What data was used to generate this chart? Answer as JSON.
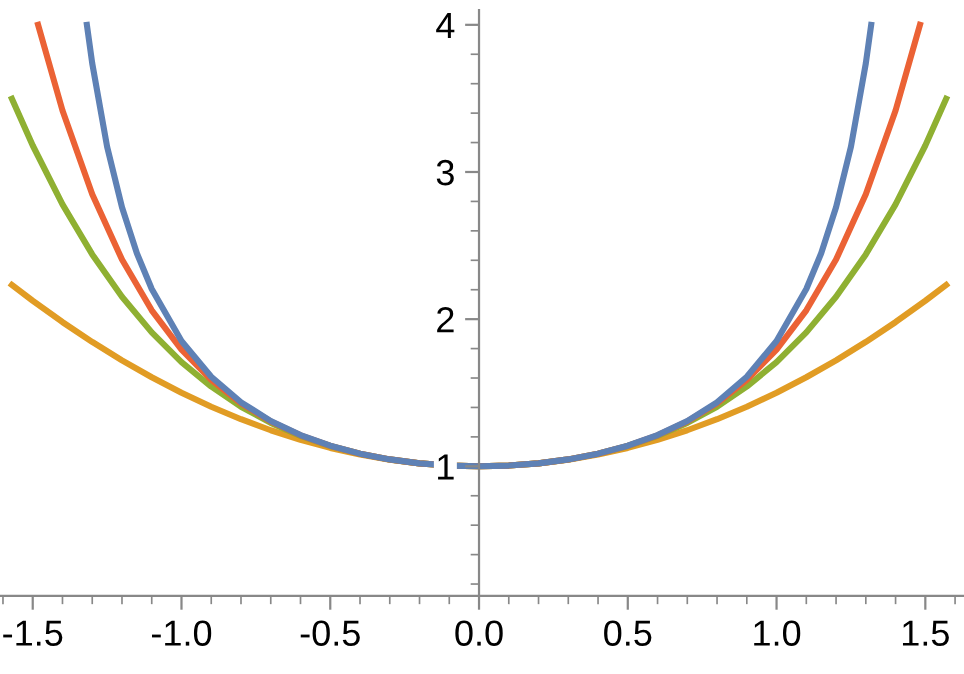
{
  "chart_data": {
    "type": "line",
    "xlim": [
      -1.61,
      1.63
    ],
    "ylim": [
      0.12,
      4.1
    ],
    "xticks": [
      {
        "value": -1.5,
        "label": "-1.5"
      },
      {
        "value": -1.0,
        "label": "-1.0"
      },
      {
        "value": -0.5,
        "label": "-0.5"
      },
      {
        "value": 0,
        "label": "0.0"
      },
      {
        "value": 0.5,
        "label": "0.5"
      },
      {
        "value": 1.0,
        "label": "1.0"
      },
      {
        "value": 1.5,
        "label": "1.5"
      }
    ],
    "yticks": [
      1,
      2,
      3,
      4
    ],
    "grid": false,
    "marker": "none",
    "line_style": "solid",
    "series": [
      {
        "color": "#e19c24",
        "x": [
          -1.57,
          -1.5,
          -1.4,
          -1.3,
          -1.2,
          -1.1,
          -1.0,
          -0.9,
          -0.8,
          -0.7,
          -0.6,
          -0.5,
          -0.4,
          -0.3,
          -0.2,
          -0.1,
          0,
          0.1,
          0.2,
          0.3,
          0.4,
          0.5,
          0.6,
          0.7,
          0.8,
          0.9,
          1.0,
          1.1,
          1.2,
          1.3,
          1.4,
          1.5,
          1.57
        ],
        "values": [
          2.232,
          2.125,
          1.98,
          1.845,
          1.72,
          1.605,
          1.5,
          1.405,
          1.32,
          1.245,
          1.18,
          1.125,
          1.08,
          1.045,
          1.02,
          1.005,
          1,
          1.005,
          1.02,
          1.045,
          1.08,
          1.125,
          1.18,
          1.245,
          1.32,
          1.405,
          1.5,
          1.605,
          1.72,
          1.845,
          1.98,
          2.125,
          2.232
        ]
      },
      {
        "color": "#8fb032",
        "x": [
          -1.57,
          -1.5,
          -1.4,
          -1.3,
          -1.2,
          -1.1,
          -1.0,
          -0.9,
          -0.8,
          -0.7,
          -0.6,
          -0.5,
          -0.4,
          -0.3,
          -0.2,
          -0.1,
          0,
          0.1,
          0.2,
          0.3,
          0.4,
          0.5,
          0.6,
          0.7,
          0.8,
          0.9,
          1.0,
          1.1,
          1.2,
          1.3,
          1.4,
          1.5,
          1.57
        ],
        "values": [
          3.498,
          3.18,
          2.78,
          2.44,
          2.152,
          1.91,
          1.708,
          1.542,
          1.405,
          1.295,
          1.207,
          1.138,
          1.085,
          1.047,
          1.02,
          1.005,
          1,
          1.005,
          1.02,
          1.047,
          1.085,
          1.138,
          1.207,
          1.295,
          1.405,
          1.542,
          1.708,
          1.91,
          2.152,
          2.44,
          2.78,
          3.18,
          3.498
        ]
      },
      {
        "color": "#eb6235",
        "x": [
          -1.482,
          -1.4,
          -1.3,
          -1.2,
          -1.1,
          -1.0,
          -0.9,
          -0.8,
          -0.7,
          -0.6,
          -0.5,
          -0.4,
          -0.3,
          -0.2,
          -0.1,
          0,
          0.1,
          0.2,
          0.3,
          0.4,
          0.5,
          0.6,
          0.7,
          0.8,
          0.9,
          1.0,
          1.1,
          1.2,
          1.3,
          1.4,
          1.482
        ],
        "values": [
          4.0,
          3.418,
          2.849,
          2.405,
          2.06,
          1.793,
          1.587,
          1.427,
          1.305,
          1.211,
          1.139,
          1.085,
          1.047,
          1.02,
          1.005,
          1,
          1.005,
          1.02,
          1.047,
          1.085,
          1.139,
          1.211,
          1.305,
          1.427,
          1.587,
          1.793,
          2.06,
          2.405,
          2.849,
          3.418,
          4.0
        ]
      },
      {
        "color": "#5e81b5",
        "x": [
          -1.318,
          -1.3,
          -1.25,
          -1.2,
          -1.15,
          -1.1,
          -1.0,
          -0.9,
          -0.8,
          -0.7,
          -0.6,
          -0.5,
          -0.4,
          -0.3,
          -0.2,
          -0.1,
          0,
          0.1,
          0.2,
          0.3,
          0.4,
          0.5,
          0.6,
          0.7,
          0.8,
          0.9,
          1.0,
          1.1,
          1.15,
          1.2,
          1.25,
          1.3,
          1.318
        ],
        "values": [
          4.0,
          3.738,
          3.171,
          2.76,
          2.448,
          2.205,
          1.851,
          1.609,
          1.435,
          1.308,
          1.212,
          1.14,
          1.086,
          1.047,
          1.02,
          1.005,
          1,
          1.005,
          1.02,
          1.047,
          1.086,
          1.14,
          1.212,
          1.308,
          1.435,
          1.609,
          1.851,
          2.205,
          2.448,
          2.76,
          3.171,
          3.738,
          4.0
        ]
      }
    ]
  }
}
